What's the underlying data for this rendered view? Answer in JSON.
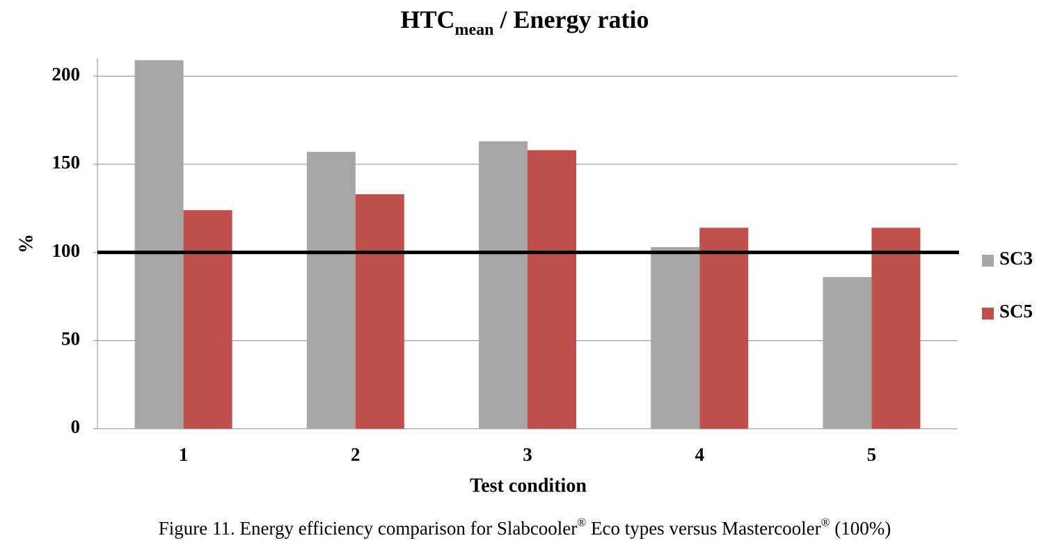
{
  "chart_data": {
    "type": "bar",
    "title": {
      "main": "HTC",
      "subscript": "mean",
      "rest": " / Energy ratio"
    },
    "x_label": "Test condition",
    "y_label": "%",
    "categories": [
      "1",
      "2",
      "3",
      "4",
      "5"
    ],
    "series": [
      {
        "name": "SC3",
        "color": "#a6a6a6",
        "values": [
          209,
          157,
          163,
          103,
          86
        ]
      },
      {
        "name": "SC5",
        "color": "#c0504d",
        "values": [
          124,
          133,
          158,
          114,
          114
        ]
      }
    ],
    "ylim": [
      0,
      210
    ],
    "yticks": [
      0,
      50,
      100,
      150,
      200
    ],
    "grid": true,
    "reference_line": 100,
    "legend": "right",
    "caption": [
      "Figure 11. Energy efficiency comparison for Slabcooler",
      "®",
      " Eco types versus Mastercooler",
      "®",
      " (100%)"
    ]
  }
}
